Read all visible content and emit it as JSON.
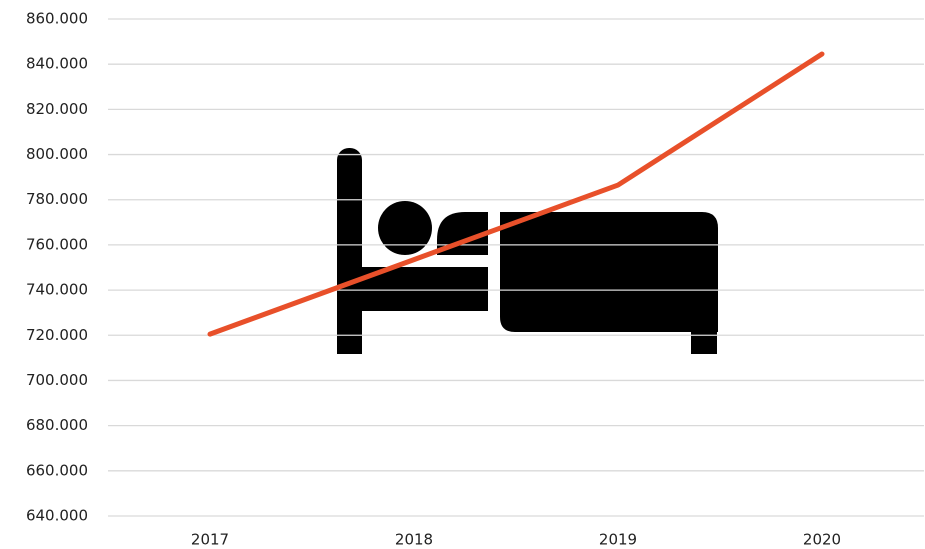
{
  "chart_data": {
    "type": "line",
    "categories": [
      "2017",
      "2018",
      "2019",
      "2020"
    ],
    "series": [
      {
        "color": "#e8502a",
        "values": [
          720500,
          753500,
          786500,
          844500
        ]
      }
    ],
    "ylim": [
      640000,
      860000
    ],
    "yticks": [
      {
        "value": 640000,
        "label": "640.000"
      },
      {
        "value": 660000,
        "label": "660.000"
      },
      {
        "value": 680000,
        "label": "680.000"
      },
      {
        "value": 700000,
        "label": "700.000"
      },
      {
        "value": 720000,
        "label": "720.000"
      },
      {
        "value": 740000,
        "label": "740.000"
      },
      {
        "value": 760000,
        "label": "760.000"
      },
      {
        "value": 780000,
        "label": "780.000"
      },
      {
        "value": 800000,
        "label": "800.000"
      },
      {
        "value": 820000,
        "label": "820.000"
      },
      {
        "value": 840000,
        "label": "840.000"
      },
      {
        "value": 860000,
        "label": "860.000"
      }
    ],
    "grid": true
  }
}
